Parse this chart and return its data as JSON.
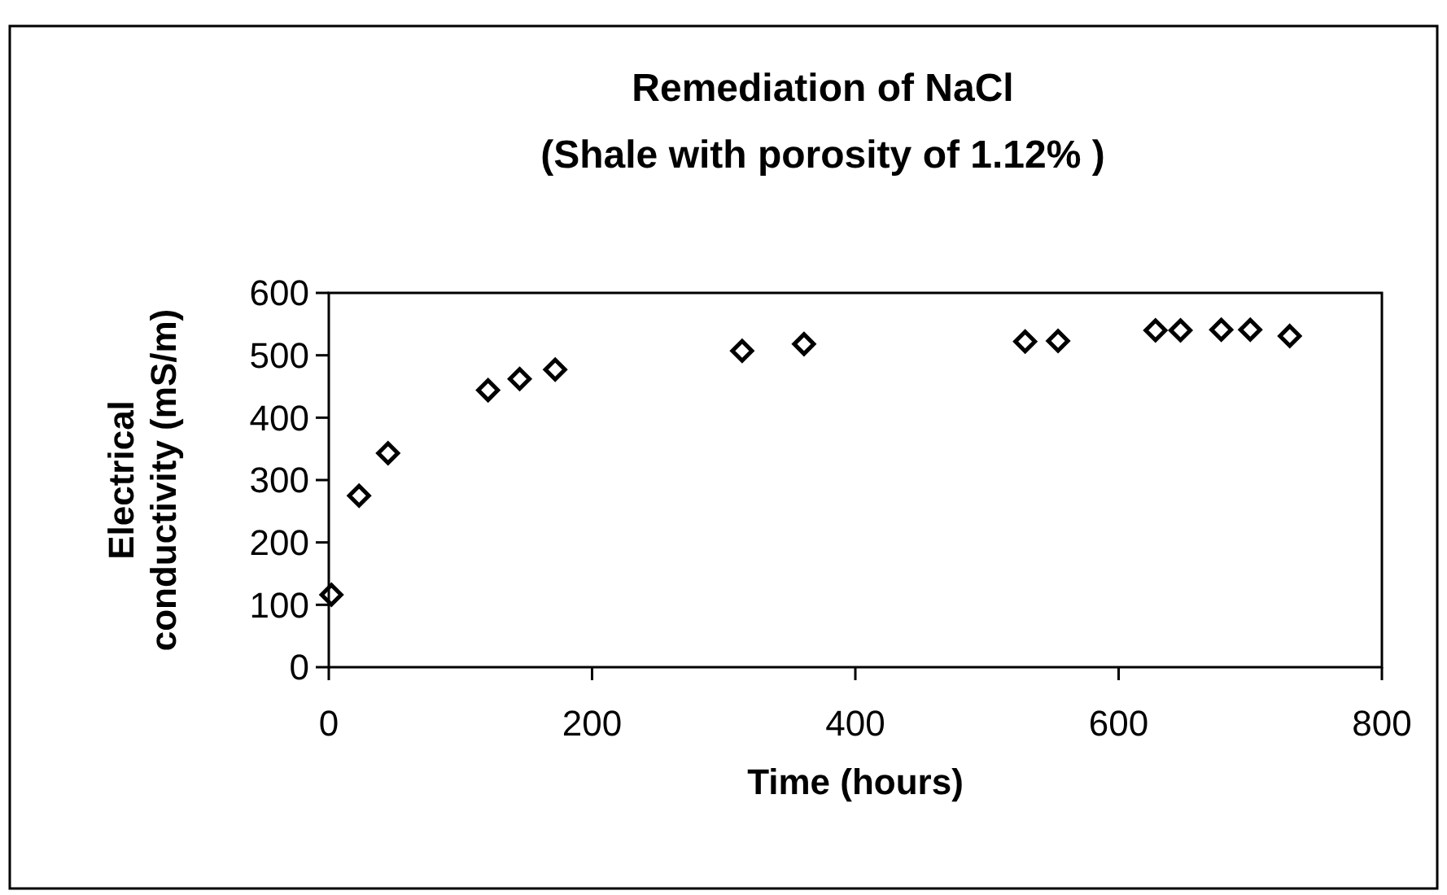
{
  "chart_data": {
    "type": "scatter",
    "title": "Remediation of NaCl",
    "subtitle": "(Shale with porosity of 1.12% )",
    "xlabel": "Time (hours)",
    "ylabel": "Electrical conductivity (mS/m)",
    "x": [
      2,
      23,
      45,
      121,
      145,
      172,
      314,
      361,
      529,
      554,
      628,
      647,
      678,
      700,
      730
    ],
    "series": [
      {
        "color": "#000000",
        "values": [
          116,
          275,
          343,
          444,
          462,
          477,
          507,
          518,
          522,
          523,
          540,
          540,
          541,
          541,
          531
        ]
      }
    ],
    "xlim": [
      0,
      800
    ],
    "xticks": [
      0,
      200,
      400,
      600,
      800
    ],
    "ylim": [
      0,
      600
    ],
    "yticks": [
      0,
      100,
      200,
      300,
      400,
      500,
      600
    ],
    "marker": "diamond",
    "grid": false
  }
}
